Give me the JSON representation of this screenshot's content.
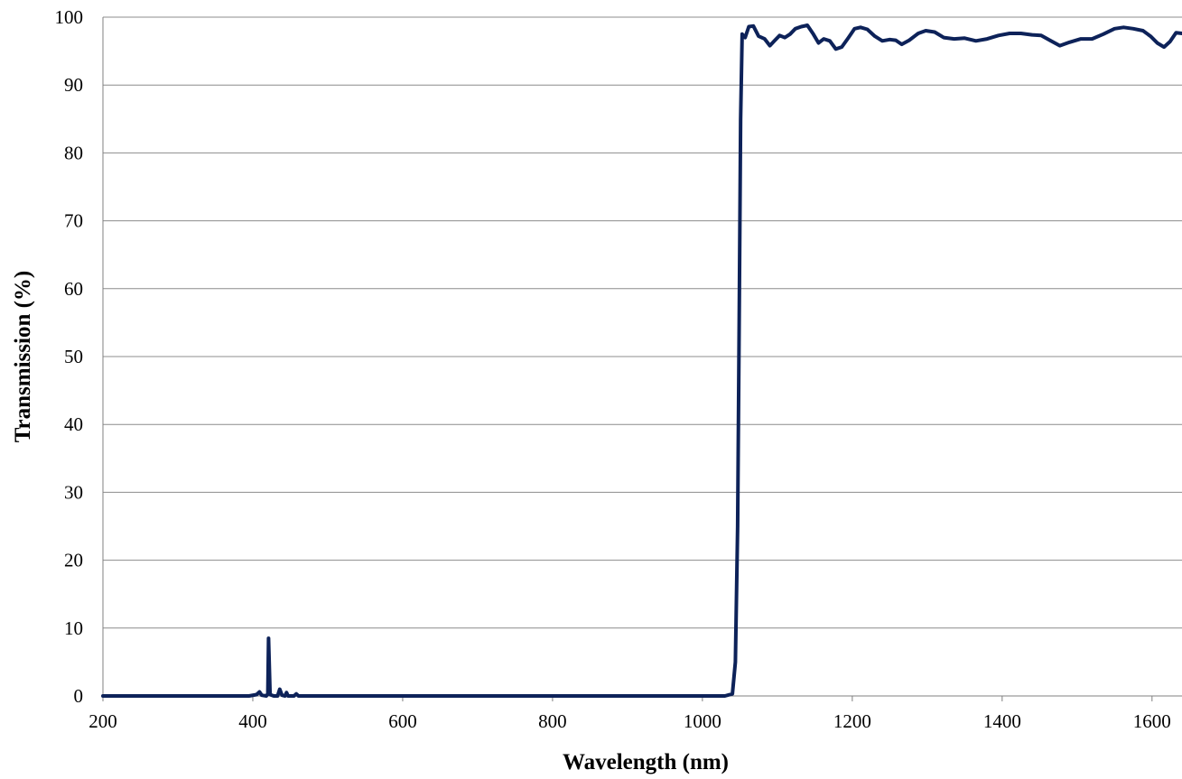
{
  "chart_data": {
    "type": "line",
    "title": "",
    "xlabel": "Wavelength (nm)",
    "ylabel": "Transmission (%)",
    "xlim": [
      200,
      1640
    ],
    "ylim": [
      0,
      100
    ],
    "x_ticks": [
      200,
      400,
      600,
      800,
      1000,
      1200,
      1400,
      1600
    ],
    "y_ticks": [
      0,
      10,
      20,
      30,
      40,
      50,
      60,
      70,
      80,
      90,
      100
    ],
    "grid": "horizontal",
    "legend": "none",
    "series": [
      {
        "color": "#0d2259",
        "points": [
          [
            200,
            0
          ],
          [
            350,
            0
          ],
          [
            395,
            0
          ],
          [
            405,
            0.2
          ],
          [
            409,
            0.6
          ],
          [
            412,
            0.1
          ],
          [
            418,
            0
          ],
          [
            420,
            0.3
          ],
          [
            421,
            8.5
          ],
          [
            423,
            0.2
          ],
          [
            428,
            0
          ],
          [
            433,
            0
          ],
          [
            436,
            1.0
          ],
          [
            439,
            0.1
          ],
          [
            443,
            0
          ],
          [
            445,
            0.5
          ],
          [
            447,
            0
          ],
          [
            455,
            0
          ],
          [
            458,
            0.3
          ],
          [
            461,
            0
          ],
          [
            1030,
            0
          ],
          [
            1040,
            0.3
          ],
          [
            1044,
            5
          ],
          [
            1047,
            25
          ],
          [
            1049,
            55
          ],
          [
            1051,
            85
          ],
          [
            1053,
            97.5
          ],
          [
            1057,
            97
          ],
          [
            1062,
            98.6
          ],
          [
            1068,
            98.7
          ],
          [
            1075,
            97.2
          ],
          [
            1083,
            96.8
          ],
          [
            1090,
            95.8
          ],
          [
            1096,
            96.5
          ],
          [
            1103,
            97.3
          ],
          [
            1110,
            97.0
          ],
          [
            1117,
            97.5
          ],
          [
            1124,
            98.3
          ],
          [
            1132,
            98.6
          ],
          [
            1140,
            98.8
          ],
          [
            1148,
            97.5
          ],
          [
            1155,
            96.2
          ],
          [
            1162,
            96.8
          ],
          [
            1170,
            96.5
          ],
          [
            1178,
            95.3
          ],
          [
            1186,
            95.6
          ],
          [
            1195,
            97.0
          ],
          [
            1203,
            98.3
          ],
          [
            1211,
            98.5
          ],
          [
            1220,
            98.2
          ],
          [
            1230,
            97.2
          ],
          [
            1240,
            96.5
          ],
          [
            1250,
            96.7
          ],
          [
            1258,
            96.6
          ],
          [
            1266,
            96.0
          ],
          [
            1276,
            96.6
          ],
          [
            1288,
            97.6
          ],
          [
            1298,
            98.0
          ],
          [
            1310,
            97.8
          ],
          [
            1322,
            97.0
          ],
          [
            1336,
            96.8
          ],
          [
            1350,
            96.9
          ],
          [
            1365,
            96.5
          ],
          [
            1380,
            96.8
          ],
          [
            1395,
            97.3
          ],
          [
            1410,
            97.6
          ],
          [
            1425,
            97.6
          ],
          [
            1440,
            97.4
          ],
          [
            1452,
            97.3
          ],
          [
            1465,
            96.5
          ],
          [
            1477,
            95.8
          ],
          [
            1490,
            96.3
          ],
          [
            1505,
            96.8
          ],
          [
            1520,
            96.8
          ],
          [
            1535,
            97.5
          ],
          [
            1550,
            98.3
          ],
          [
            1562,
            98.5
          ],
          [
            1575,
            98.3
          ],
          [
            1588,
            98.0
          ],
          [
            1598,
            97.2
          ],
          [
            1607,
            96.2
          ],
          [
            1616,
            95.6
          ],
          [
            1624,
            96.4
          ],
          [
            1632,
            97.7
          ],
          [
            1640,
            97.6
          ]
        ]
      }
    ]
  }
}
